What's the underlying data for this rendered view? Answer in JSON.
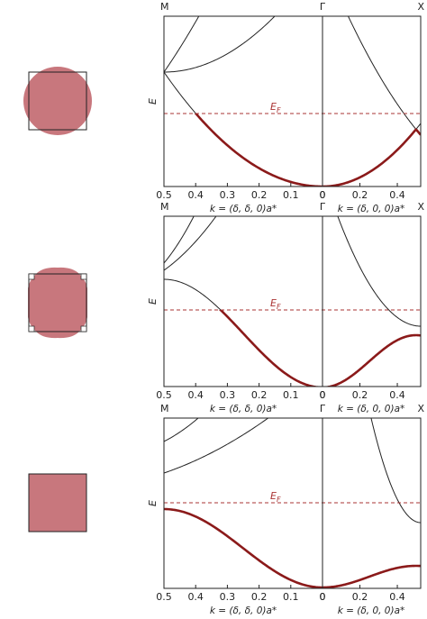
{
  "panels": [
    {
      "top_labels": {
        "left": "M",
        "middle": "Γ",
        "right": "X"
      },
      "y_label": "E",
      "fermi_label": {
        "main": "E",
        "sub": "F"
      },
      "left_axis": {
        "xlim": [
          0.5,
          0
        ],
        "xticks": [
          0.5,
          0.4,
          0.3,
          0.2,
          0.1,
          0
        ],
        "xlabel": "k = (δ, δ, 0)a*"
      },
      "right_axis": {
        "xlim": [
          0,
          0.525
        ],
        "xticks": [
          0,
          0.2,
          0.4
        ],
        "xlabel": "k = (δ, 0, 0)a*"
      }
    },
    {
      "top_labels": {
        "left": "M",
        "middle": "Γ",
        "right": "X"
      },
      "y_label": "E",
      "fermi_label": {
        "main": "E",
        "sub": "F"
      },
      "left_axis": {
        "xlim": [
          0.5,
          0
        ],
        "xticks": [
          0.5,
          0.4,
          0.3,
          0.2,
          0.1,
          0
        ],
        "xlabel": "k = (δ, δ, 0)a*"
      },
      "right_axis": {
        "xlim": [
          0,
          0.525
        ],
        "xticks": [
          0,
          0.2,
          0.4
        ],
        "xlabel": "k = (δ, 0, 0)a*"
      }
    },
    {
      "top_labels": {
        "left": "M",
        "middle": "Γ",
        "right": "X"
      },
      "y_label": "E",
      "fermi_label": {
        "main": "E",
        "sub": "F"
      },
      "left_axis": {
        "xlim": [
          0.5,
          0
        ],
        "xticks": [
          0.5,
          0.4,
          0.3,
          0.2,
          0.1,
          0
        ],
        "xlabel": "k = (δ, δ, 0)a*"
      },
      "right_axis": {
        "xlim": [
          0,
          0.525
        ],
        "xticks": [
          0,
          0.2,
          0.4
        ],
        "xlabel": "k = (δ, 0, 0)a*"
      }
    }
  ]
}
